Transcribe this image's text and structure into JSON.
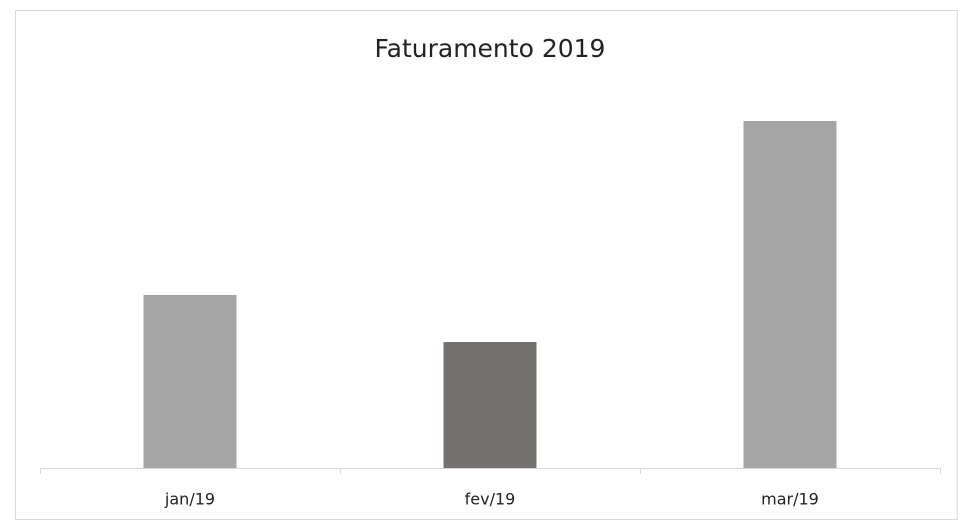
{
  "chart_data": {
    "type": "bar",
    "title": "Faturamento 2019",
    "categories": [
      "jan/19",
      "fev/19",
      "mar/19"
    ],
    "values": [
      173,
      126,
      347
    ],
    "colors": [
      "#a5a5a5",
      "#767171",
      "#a5a5a5"
    ]
  }
}
